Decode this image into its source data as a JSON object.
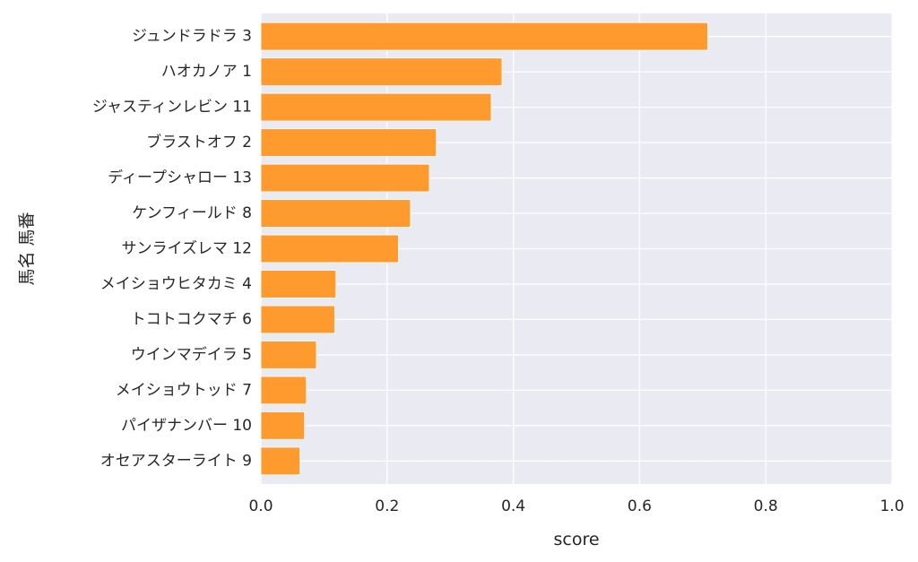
{
  "chart_data": {
    "type": "bar",
    "orientation": "horizontal",
    "title": "",
    "xlabel": "score",
    "ylabel": "馬名 馬番",
    "xlim": [
      0,
      1.0
    ],
    "xticks": [
      "0.0",
      "0.2",
      "0.4",
      "0.6",
      "0.8",
      "1.0"
    ],
    "grid": true,
    "bar_color": "#ff9a2e",
    "background_color": "#eaeaf2",
    "categories": [
      "ジュンドラドラ 3",
      "ハオカノア 1",
      "ジャスティンレビン 11",
      "ブラストオフ 2",
      "ディープシャロー 13",
      "ケンフィールド 8",
      "サンライズレマ 12",
      "メイショウヒタカミ 4",
      "トコトコクマチ 6",
      "ウインマデイラ 5",
      "メイショウトッド 7",
      "パイザナンバー 10",
      "オセアスターライト 9"
    ],
    "values": [
      0.708,
      0.382,
      0.365,
      0.278,
      0.267,
      0.237,
      0.218,
      0.119,
      0.117,
      0.088,
      0.072,
      0.069,
      0.062
    ]
  }
}
